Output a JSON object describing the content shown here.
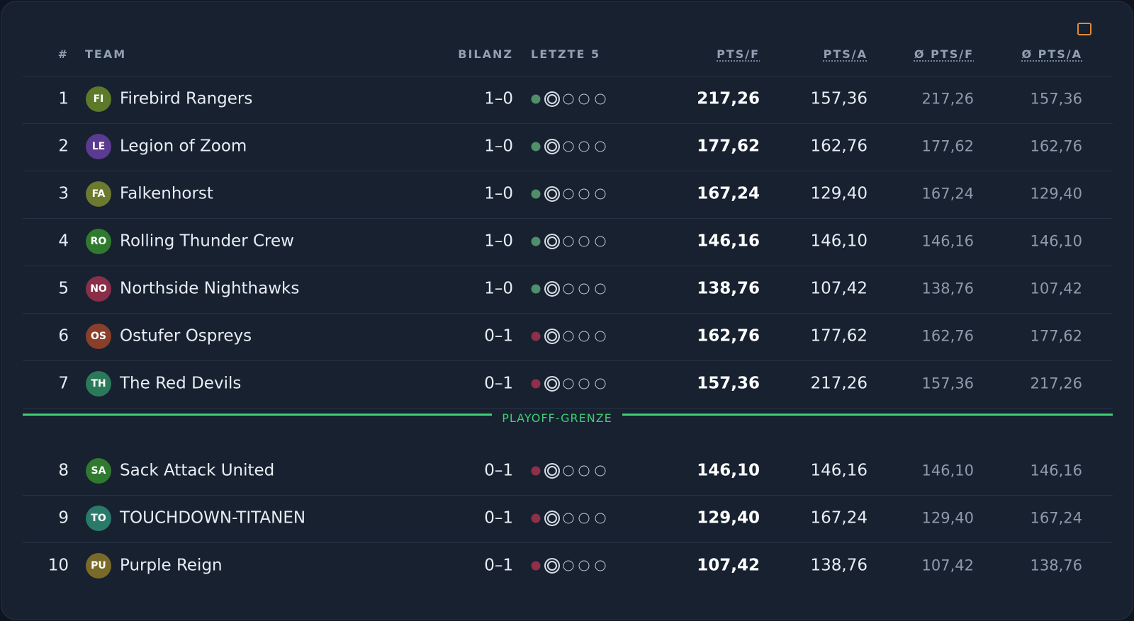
{
  "table": {
    "headers": [
      "#",
      "TEAM",
      "BILANZ",
      "LETZTE 5",
      "PTS/F",
      "PTS/A",
      "Ø PTS/F",
      "Ø PTS/A"
    ],
    "divider": "PLAYOFF-GRENZE",
    "rows": [
      {
        "rank": "1",
        "initials": "FI",
        "team": "Firebird Rangers",
        "record": "1–0",
        "pts_f": "217,26",
        "pts_a": "157,36",
        "avg_f": "217,26",
        "avg_a": "157,36",
        "avatar_color": "#5d7a2a",
        "form_color": "#4f8f6a"
      },
      {
        "rank": "2",
        "initials": "LE",
        "team": "Legion of Zoom",
        "record": "1–0",
        "pts_f": "177,62",
        "pts_a": "162,76",
        "avg_f": "177,62",
        "avg_a": "162,76",
        "avatar_color": "#5b3a91",
        "form_color": "#4f8f6a"
      },
      {
        "rank": "3",
        "initials": "FA",
        "team": "Falkenhorst",
        "record": "1–0",
        "pts_f": "167,24",
        "pts_a": "129,40",
        "avg_f": "167,24",
        "avg_a": "129,40",
        "avatar_color": "#6b7a2e",
        "form_color": "#4f8f6a"
      },
      {
        "rank": "4",
        "initials": "RO",
        "team": "Rolling Thunder Crew",
        "record": "1–0",
        "pts_f": "146,16",
        "pts_a": "146,10",
        "avg_f": "146,16",
        "avg_a": "146,10",
        "avatar_color": "#2f7a2f",
        "form_color": "#4f8f6a"
      },
      {
        "rank": "5",
        "initials": "NO",
        "team": "Northside Nighthawks",
        "record": "1–0",
        "pts_f": "138,76",
        "pts_a": "107,42",
        "avg_f": "138,76",
        "avg_a": "107,42",
        "avatar_color": "#8a2e4a",
        "form_color": "#4f8f6a"
      },
      {
        "rank": "6",
        "initials": "OS",
        "team": "Ostufer Ospreys",
        "record": "0–1",
        "pts_f": "162,76",
        "pts_a": "177,62",
        "avg_f": "162,76",
        "avg_a": "177,62",
        "avatar_color": "#8a3f2a",
        "form_color": "#8f3048"
      },
      {
        "rank": "7",
        "initials": "TH",
        "team": "The Red Devils",
        "record": "0–1",
        "pts_f": "157,36",
        "pts_a": "217,26",
        "avg_f": "157,36",
        "avg_a": "217,26",
        "avatar_color": "#2a7a5a",
        "form_color": "#8f3048"
      },
      {
        "rank": "8",
        "initials": "SA",
        "team": "Sack Attack United",
        "record": "0–1",
        "pts_f": "146,10",
        "pts_a": "146,16",
        "avg_f": "146,10",
        "avg_a": "146,16",
        "avatar_color": "#2f7a2f",
        "form_color": "#8f3048"
      },
      {
        "rank": "9",
        "initials": "TO",
        "team": "TOUCHDOWN-TITANEN",
        "record": "0–1",
        "pts_f": "129,40",
        "pts_a": "167,24",
        "avg_f": "129,40",
        "avg_a": "167,24",
        "avatar_color": "#2a7a6a",
        "form_color": "#8f3048"
      },
      {
        "rank": "10",
        "initials": "PU",
        "team": "Purple Reign",
        "record": "0–1",
        "pts_f": "107,42",
        "pts_a": "138,76",
        "avg_f": "107,42",
        "avg_a": "138,76",
        "avatar_color": "#7a6a2a",
        "form_color": "#8f3048"
      }
    ]
  }
}
